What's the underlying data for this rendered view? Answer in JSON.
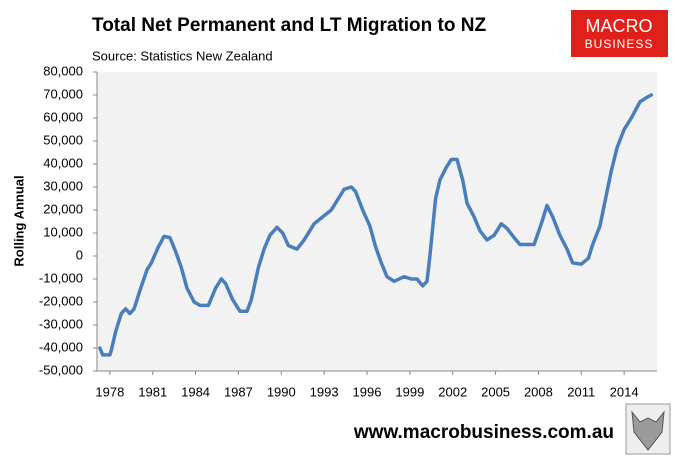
{
  "chart_data": {
    "type": "line",
    "title": "Total Net Permanent and LT Migration to NZ",
    "subtitle": "Source: Statistics New Zealand",
    "y_label": "Rolling Annual",
    "logo": {
      "line1": "MACRO",
      "line2": "BUSINESS"
    },
    "footer": "www.macrobusiness.com.au",
    "x": [
      1977.3,
      1977.5,
      1978.0,
      1978.1,
      1978.4,
      1978.8,
      1979.1,
      1979.4,
      1979.7,
      1980.1,
      1980.6,
      1980.9,
      1981.4,
      1981.8,
      1982.2,
      1982.6,
      1983.0,
      1983.4,
      1983.9,
      1984.3,
      1984.9,
      1985.4,
      1985.8,
      1986.1,
      1986.6,
      1987.1,
      1987.6,
      1987.9,
      1988.4,
      1988.8,
      1989.2,
      1989.7,
      1990.1,
      1990.5,
      1991.1,
      1991.6,
      1992.3,
      1992.9,
      1993.5,
      1994.0,
      1994.4,
      1994.9,
      1995.2,
      1995.7,
      1996.2,
      1996.6,
      1997.0,
      1997.4,
      1997.9,
      1998.6,
      1999.1,
      1999.5,
      1999.9,
      2000.2,
      2000.4,
      2000.8,
      2001.1,
      2001.5,
      2001.9,
      2002.3,
      2002.7,
      2003.0,
      2003.5,
      2003.9,
      2004.4,
      2004.9,
      2005.4,
      2005.8,
      2006.3,
      2006.7,
      2007.2,
      2007.7,
      2008.2,
      2008.6,
      2009.0,
      2009.5,
      2010.0,
      2010.4,
      2011.0,
      2011.5,
      2011.8,
      2012.3,
      2012.7,
      2013.1,
      2013.5,
      2014.0,
      2014.5,
      2015.1,
      2015.6,
      2015.9
    ],
    "series": [
      {
        "name": "Rolling Annual",
        "color": "#4a7ebb",
        "values": [
          -40000,
          -43000,
          -43000,
          -41000,
          -33000,
          -25000,
          -23000,
          -25000,
          -23000,
          -15000,
          -6000,
          -3000,
          4000,
          8500,
          8000,
          2000,
          -5000,
          -14000,
          -20000,
          -21500,
          -21500,
          -14000,
          -10000,
          -12000,
          -19000,
          -24000,
          -24000,
          -19000,
          -5000,
          3000,
          9000,
          12500,
          10000,
          4500,
          3000,
          7000,
          14000,
          17000,
          20000,
          25000,
          29000,
          30000,
          28000,
          20000,
          13000,
          4000,
          -3000,
          -9000,
          -11000,
          -9000,
          -10000,
          -10000,
          -13000,
          -11000,
          0,
          25000,
          33000,
          38000,
          42000,
          42000,
          33000,
          23000,
          17000,
          11000,
          7000,
          9000,
          14000,
          12000,
          8000,
          5000,
          5000,
          5000,
          14000,
          22000,
          17000,
          9000,
          3000,
          -3000,
          -3500,
          -1000,
          5000,
          13000,
          25000,
          37000,
          47000,
          55000,
          60000,
          67000,
          69000,
          70000
        ]
      }
    ],
    "xlim": [
      1977.1,
      2016.3
    ],
    "xticks": [
      1978,
      1981,
      1984,
      1987,
      1990,
      1993,
      1996,
      1999,
      2002,
      2005,
      2008,
      2011,
      2014
    ],
    "ylim": [
      -50000,
      80000
    ],
    "yticks": [
      {
        "value": -50000,
        "label": "-50,000"
      },
      {
        "value": -40000,
        "label": "-40,000"
      },
      {
        "value": -30000,
        "label": "-30,000"
      },
      {
        "value": -20000,
        "label": "-20,000"
      },
      {
        "value": -10000,
        "label": "-10,000"
      },
      0,
      {
        "value": 10000,
        "label": "10,000"
      },
      {
        "value": 20000,
        "label": "20,000"
      },
      {
        "value": 30000,
        "label": "30,000"
      },
      {
        "value": 40000,
        "label": "40,000"
      },
      {
        "value": 50000,
        "label": "50,000"
      },
      {
        "value": 60000,
        "label": "60,000"
      },
      {
        "value": 70000,
        "label": "70,000"
      },
      {
        "value": 80000,
        "label": "80,000"
      }
    ],
    "grid": false
  }
}
